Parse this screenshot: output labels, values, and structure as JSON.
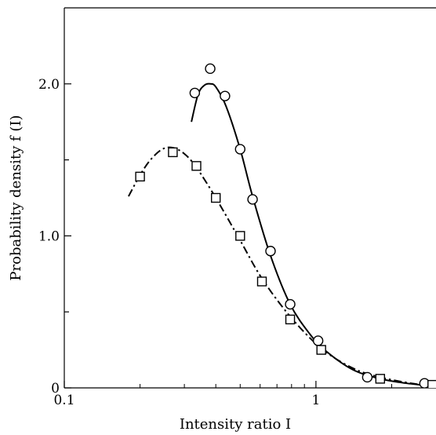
{
  "chart_data": {
    "type": "scatter",
    "title": "",
    "xlabel": "Intensity ratio I",
    "ylabel": "Probability density f (I)",
    "x_scale": "log",
    "xlim": [
      0.1,
      3.0
    ],
    "ylim": [
      0,
      2.5
    ],
    "x_ticks": [
      {
        "value": 0.1,
        "label": "0.1"
      },
      {
        "value": 1,
        "label": "1"
      }
    ],
    "y_ticks": [
      {
        "value": 0,
        "label": "0"
      },
      {
        "value": 1.0,
        "label": "1.0"
      },
      {
        "value": 2.0,
        "label": "2.0"
      }
    ],
    "y_minor_ticks": [
      0.5,
      1.5
    ],
    "grid": false,
    "legend": "none",
    "series": [
      {
        "marker": "circle",
        "line_style": "solid",
        "points": [
          {
            "x": 0.33,
            "y": 1.94
          },
          {
            "x": 0.38,
            "y": 2.1
          },
          {
            "x": 0.435,
            "y": 1.92
          },
          {
            "x": 0.5,
            "y": 1.57
          },
          {
            "x": 0.56,
            "y": 1.24
          },
          {
            "x": 0.66,
            "y": 0.9
          },
          {
            "x": 0.79,
            "y": 0.55
          },
          {
            "x": 1.02,
            "y": 0.31
          },
          {
            "x": 1.6,
            "y": 0.07
          },
          {
            "x": 2.7,
            "y": 0.03
          }
        ],
        "curve": [
          {
            "x": 0.32,
            "y": 1.75
          },
          {
            "x": 0.34,
            "y": 1.93
          },
          {
            "x": 0.36,
            "y": 1.99
          },
          {
            "x": 0.38,
            "y": 2.0
          },
          {
            "x": 0.4,
            "y": 1.98
          },
          {
            "x": 0.44,
            "y": 1.85
          },
          {
            "x": 0.5,
            "y": 1.57
          },
          {
            "x": 0.56,
            "y": 1.26
          },
          {
            "x": 0.66,
            "y": 0.87
          },
          {
            "x": 0.79,
            "y": 0.55
          },
          {
            "x": 0.95,
            "y": 0.35
          },
          {
            "x": 1.1,
            "y": 0.24
          },
          {
            "x": 1.4,
            "y": 0.12
          },
          {
            "x": 1.8,
            "y": 0.06
          },
          {
            "x": 2.3,
            "y": 0.03
          },
          {
            "x": 3.0,
            "y": 0.01
          }
        ]
      },
      {
        "marker": "square",
        "line_style": "dash-dot",
        "points": [
          {
            "x": 0.2,
            "y": 1.39
          },
          {
            "x": 0.27,
            "y": 1.55
          },
          {
            "x": 0.335,
            "y": 1.46
          },
          {
            "x": 0.4,
            "y": 1.25
          },
          {
            "x": 0.5,
            "y": 1.0
          },
          {
            "x": 0.61,
            "y": 0.7
          },
          {
            "x": 0.79,
            "y": 0.45
          },
          {
            "x": 1.05,
            "y": 0.25
          },
          {
            "x": 1.8,
            "y": 0.06
          },
          {
            "x": 2.9,
            "y": 0.02
          }
        ],
        "curve": [
          {
            "x": 0.18,
            "y": 1.26
          },
          {
            "x": 0.2,
            "y": 1.4
          },
          {
            "x": 0.22,
            "y": 1.5
          },
          {
            "x": 0.245,
            "y": 1.57
          },
          {
            "x": 0.27,
            "y": 1.58
          },
          {
            "x": 0.3,
            "y": 1.54
          },
          {
            "x": 0.335,
            "y": 1.45
          },
          {
            "x": 0.4,
            "y": 1.25
          },
          {
            "x": 0.5,
            "y": 0.97
          },
          {
            "x": 0.61,
            "y": 0.72
          },
          {
            "x": 0.79,
            "y": 0.47
          },
          {
            "x": 1.05,
            "y": 0.26
          },
          {
            "x": 1.4,
            "y": 0.13
          },
          {
            "x": 1.8,
            "y": 0.07
          },
          {
            "x": 2.4,
            "y": 0.03
          },
          {
            "x": 3.0,
            "y": 0.01
          }
        ]
      }
    ]
  }
}
